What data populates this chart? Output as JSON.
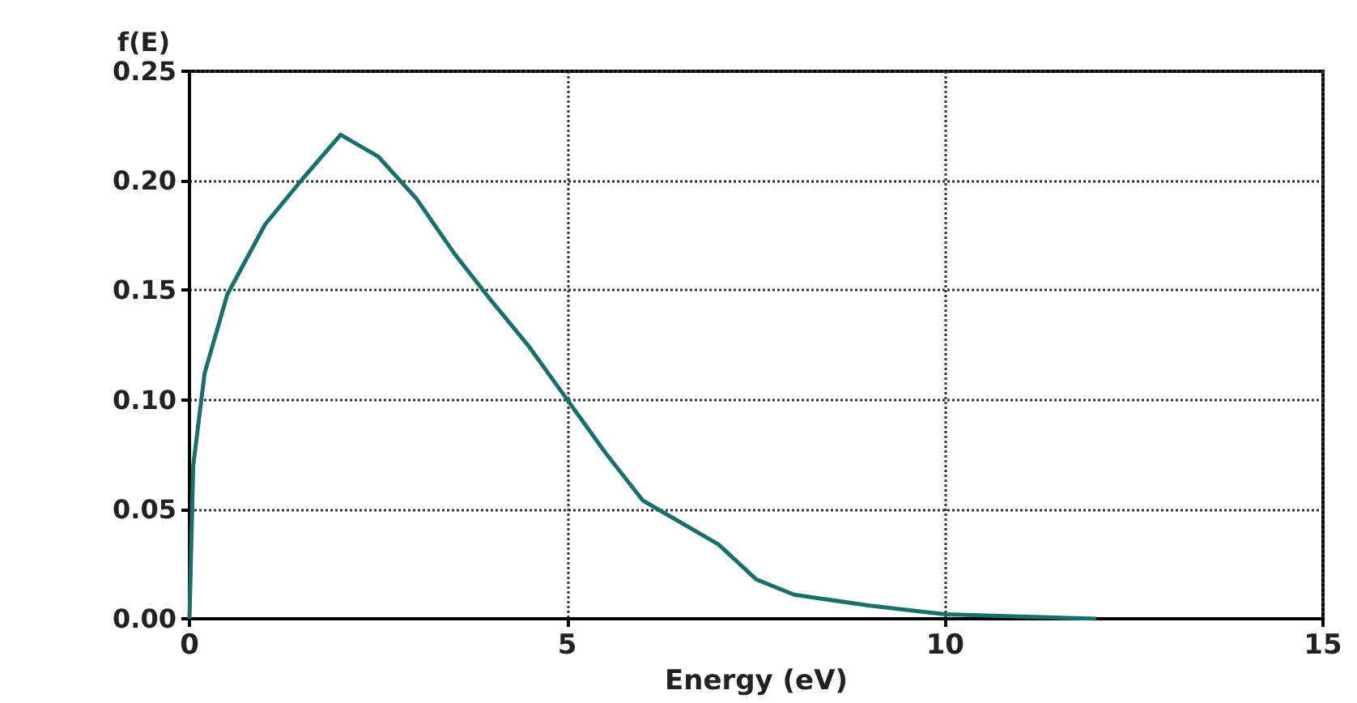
{
  "chart_data": {
    "type": "line",
    "xlabel": "Energy (eV)",
    "ylabel": "f(E)",
    "x": [
      0,
      0.05,
      0.2,
      0.5,
      1,
      1.5,
      2,
      2.5,
      3,
      3.5,
      4,
      4.5,
      5,
      5.5,
      6,
      7,
      7.5,
      8,
      9,
      10,
      11,
      12
    ],
    "series": [
      {
        "color": "#17706c",
        "values": [
          0,
          0.07,
          0.112,
          0.148,
          0.18,
          0.201,
          0.221,
          0.211,
          0.192,
          0.167,
          0.145,
          0.124,
          0.1,
          0.076,
          0.054,
          0.034,
          0.018,
          0.011,
          0.006,
          0.002,
          0.001,
          0
        ]
      }
    ],
    "xlim": [
      0,
      15
    ],
    "xticks": [
      {
        "value": 0,
        "label": "0"
      },
      {
        "value": 5,
        "label": "5"
      },
      {
        "value": 10,
        "label": "10"
      },
      {
        "value": 15,
        "label": "15"
      }
    ],
    "ylim": [
      0,
      0.25
    ],
    "yticks": [
      {
        "value": 0,
        "label": "0.00"
      },
      {
        "value": 0.05,
        "label": "0.05"
      },
      {
        "value": 0.1,
        "label": "0.10"
      },
      {
        "value": 0.15,
        "label": "0.15"
      },
      {
        "value": 0.2,
        "label": "0.20"
      },
      {
        "value": 0.25,
        "label": "0.25"
      }
    ],
    "grid": true,
    "marker": "none",
    "line_style": "solid"
  }
}
